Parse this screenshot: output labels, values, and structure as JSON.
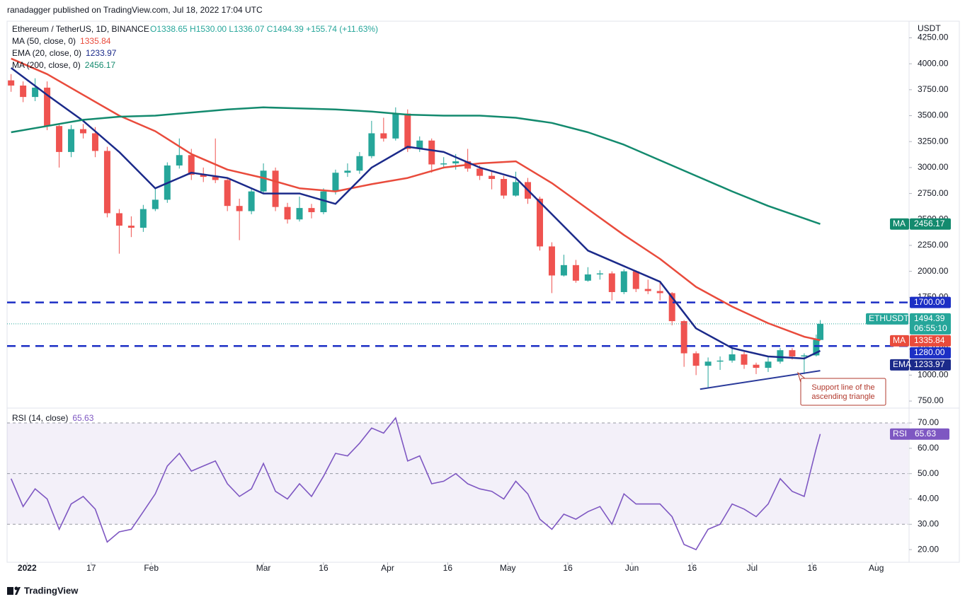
{
  "header": {
    "author_line": "ranadagger published on TradingView.com, Jul 18, 2022 17:04 UTC",
    "symbol": "Ethereum / TetherUS, 1D, BINANCE",
    "ohlc_text": "O1338.65 H1530.00 L1336.07 C1494.39 +155.74 (+11.63%)"
  },
  "footer": {
    "brand": "TradingView"
  },
  "chart_data": [
    {
      "type": "candlestick",
      "currency": "USDT",
      "x": [
        "2021-12-28",
        "2021-12-31",
        "2022-01-03",
        "2022-01-06",
        "2022-01-09",
        "2022-01-12",
        "2022-01-15",
        "2022-01-18",
        "2022-01-21",
        "2022-01-24",
        "2022-01-27",
        "2022-01-30",
        "2022-02-02",
        "2022-02-05",
        "2022-02-08",
        "2022-02-11",
        "2022-02-14",
        "2022-02-17",
        "2022-02-20",
        "2022-02-23",
        "2022-02-26",
        "2022-03-01",
        "2022-03-04",
        "2022-03-07",
        "2022-03-10",
        "2022-03-13",
        "2022-03-16",
        "2022-03-19",
        "2022-03-22",
        "2022-03-25",
        "2022-03-28",
        "2022-03-31",
        "2022-04-03",
        "2022-04-06",
        "2022-04-09",
        "2022-04-12",
        "2022-04-15",
        "2022-04-18",
        "2022-04-21",
        "2022-04-24",
        "2022-04-27",
        "2022-04-30",
        "2022-05-03",
        "2022-05-06",
        "2022-05-09",
        "2022-05-12",
        "2022-05-15",
        "2022-05-18",
        "2022-05-21",
        "2022-05-24",
        "2022-05-27",
        "2022-05-30",
        "2022-06-02",
        "2022-06-05",
        "2022-06-08",
        "2022-06-11",
        "2022-06-14",
        "2022-06-17",
        "2022-06-20",
        "2022-06-23",
        "2022-06-26",
        "2022-06-29",
        "2022-07-02",
        "2022-07-05",
        "2022-07-08",
        "2022-07-11",
        "2022-07-14",
        "2022-07-17",
        "2022-07-18"
      ],
      "ohlc": [
        [
          3840,
          3900,
          3730,
          3790
        ],
        [
          3790,
          3830,
          3630,
          3680
        ],
        [
          3680,
          3860,
          3640,
          3770
        ],
        [
          3770,
          3830,
          3360,
          3400
        ],
        [
          3400,
          3420,
          3000,
          3150
        ],
        [
          3150,
          3410,
          3100,
          3370
        ],
        [
          3370,
          3420,
          3280,
          3330
        ],
        [
          3330,
          3390,
          3100,
          3160
        ],
        [
          3160,
          3200,
          2520,
          2560
        ],
        [
          2560,
          2600,
          2170,
          2440
        ],
        [
          2440,
          2530,
          2330,
          2420
        ],
        [
          2420,
          2640,
          2380,
          2600
        ],
        [
          2600,
          2800,
          2580,
          2690
        ],
        [
          2690,
          3050,
          2660,
          3020
        ],
        [
          3020,
          3280,
          2990,
          3120
        ],
        [
          3120,
          3180,
          2880,
          2930
        ],
        [
          2930,
          3000,
          2860,
          2910
        ],
        [
          2910,
          3280,
          2850,
          2880
        ],
        [
          2880,
          2900,
          2580,
          2630
        ],
        [
          2630,
          2700,
          2300,
          2580
        ],
        [
          2580,
          2800,
          2550,
          2770
        ],
        [
          2770,
          3040,
          2750,
          2970
        ],
        [
          2970,
          3000,
          2580,
          2620
        ],
        [
          2620,
          2660,
          2460,
          2500
        ],
        [
          2500,
          2720,
          2480,
          2610
        ],
        [
          2610,
          2650,
          2510,
          2570
        ],
        [
          2570,
          2800,
          2550,
          2770
        ],
        [
          2770,
          2980,
          2740,
          2950
        ],
        [
          2950,
          3040,
          2910,
          2970
        ],
        [
          2970,
          3150,
          2940,
          3110
        ],
        [
          3110,
          3450,
          3090,
          3330
        ],
        [
          3330,
          3480,
          3250,
          3280
        ],
        [
          3280,
          3580,
          3260,
          3520
        ],
        [
          3520,
          3560,
          3150,
          3180
        ],
        [
          3180,
          3300,
          3150,
          3260
        ],
        [
          3260,
          3280,
          2950,
          3030
        ],
        [
          3030,
          3100,
          2990,
          3040
        ],
        [
          3040,
          3130,
          2980,
          3060
        ],
        [
          3060,
          3180,
          2960,
          2990
        ],
        [
          2990,
          3020,
          2880,
          2920
        ],
        [
          2920,
          2960,
          2790,
          2890
        ],
        [
          2890,
          2920,
          2700,
          2730
        ],
        [
          2730,
          2960,
          2720,
          2860
        ],
        [
          2860,
          2900,
          2650,
          2700
        ],
        [
          2700,
          2720,
          2200,
          2240
        ],
        [
          2240,
          2280,
          1790,
          1960
        ],
        [
          1960,
          2160,
          1950,
          2060
        ],
        [
          2060,
          2110,
          1890,
          1910
        ],
        [
          1910,
          2040,
          1900,
          1970
        ],
        [
          1970,
          2010,
          1920,
          1980
        ],
        [
          1980,
          2000,
          1720,
          1800
        ],
        [
          1800,
          2020,
          1780,
          2000
        ],
        [
          2000,
          2010,
          1800,
          1830
        ],
        [
          1830,
          1920,
          1780,
          1810
        ],
        [
          1810,
          1900,
          1720,
          1790
        ],
        [
          1790,
          1800,
          1480,
          1520
        ],
        [
          1520,
          1530,
          1080,
          1210
        ],
        [
          1210,
          1230,
          1000,
          1090
        ],
        [
          1090,
          1170,
          880,
          1130
        ],
        [
          1130,
          1180,
          1050,
          1140
        ],
        [
          1140,
          1280,
          1120,
          1200
        ],
        [
          1200,
          1230,
          1060,
          1100
        ],
        [
          1100,
          1120,
          1010,
          1070
        ],
        [
          1070,
          1180,
          1030,
          1130
        ],
        [
          1130,
          1260,
          1110,
          1240
        ],
        [
          1240,
          1260,
          1150,
          1180
        ],
        [
          1180,
          1210,
          1010,
          1190
        ],
        [
          1190,
          1390,
          1180,
          1340
        ],
        [
          1338.65,
          1530,
          1336.07,
          1494.39
        ]
      ],
      "colors": {
        "up": "#26a69a",
        "down": "#ef5350"
      },
      "xlim": [
        "2021-12-27",
        "2022-08-09"
      ],
      "ylim": [
        689,
        4410
      ],
      "yticks": [
        {
          "value": 750,
          "label": "750.00"
        },
        {
          "value": 1000,
          "label": "1000.00"
        },
        {
          "value": 1250,
          "label": "1250.00"
        },
        {
          "value": 1500,
          "label": "1500.00"
        },
        {
          "value": 1750,
          "label": "1750.00"
        },
        {
          "value": 2000,
          "label": "2000.00"
        },
        {
          "value": 2250,
          "label": "2250.00"
        },
        {
          "value": 2500,
          "label": "2500.00"
        },
        {
          "value": 2750,
          "label": "2750.00"
        },
        {
          "value": 3000,
          "label": "3000.00"
        },
        {
          "value": 3250,
          "label": "3250.00"
        },
        {
          "value": 3500,
          "label": "3500.00"
        },
        {
          "value": 3750,
          "label": "3750.00"
        },
        {
          "value": 4000,
          "label": "4000.00"
        },
        {
          "value": 4250,
          "label": "4250.00"
        }
      ],
      "symbol_tag": "ETHUSDT",
      "countdown": "06:55:10",
      "series": [
        {
          "name": "MA (50, close, 0)",
          "tag": "MA",
          "color": "#e94b3c",
          "x": [
            "2021-12-28",
            "2022-01-06",
            "2022-01-15",
            "2022-01-24",
            "2022-02-02",
            "2022-02-11",
            "2022-02-20",
            "2022-03-01",
            "2022-03-10",
            "2022-03-19",
            "2022-03-28",
            "2022-04-06",
            "2022-04-15",
            "2022-04-24",
            "2022-05-03",
            "2022-05-12",
            "2022-05-21",
            "2022-05-30",
            "2022-06-08",
            "2022-06-17",
            "2022-06-26",
            "2022-07-05",
            "2022-07-14",
            "2022-07-18"
          ],
          "values": [
            4050,
            3900,
            3700,
            3500,
            3350,
            3130,
            2980,
            2900,
            2800,
            2770,
            2840,
            2900,
            3000,
            3040,
            3060,
            2850,
            2600,
            2350,
            2120,
            1850,
            1660,
            1500,
            1370,
            1335.84
          ]
        },
        {
          "name": "EMA (20, close, 0)",
          "tag": "EMA",
          "color": "#1b2a8a",
          "x": [
            "2021-12-28",
            "2022-01-06",
            "2022-01-15",
            "2022-01-24",
            "2022-02-02",
            "2022-02-11",
            "2022-02-20",
            "2022-03-01",
            "2022-03-10",
            "2022-03-19",
            "2022-03-28",
            "2022-04-06",
            "2022-04-15",
            "2022-04-24",
            "2022-05-03",
            "2022-05-12",
            "2022-05-21",
            "2022-05-30",
            "2022-06-08",
            "2022-06-17",
            "2022-06-26",
            "2022-07-05",
            "2022-07-14",
            "2022-07-18"
          ],
          "values": [
            3960,
            3700,
            3450,
            3150,
            2800,
            2950,
            2900,
            2750,
            2750,
            2650,
            3000,
            3200,
            3150,
            3000,
            2900,
            2550,
            2200,
            2050,
            1900,
            1450,
            1260,
            1180,
            1160,
            1233.97
          ]
        },
        {
          "name": "MA (200, close, 0)",
          "tag": "MA",
          "color": "#138a6e",
          "x": [
            "2021-12-28",
            "2022-01-06",
            "2022-01-15",
            "2022-01-24",
            "2022-02-02",
            "2022-02-11",
            "2022-02-20",
            "2022-03-01",
            "2022-03-10",
            "2022-03-19",
            "2022-03-28",
            "2022-04-06",
            "2022-04-15",
            "2022-04-24",
            "2022-05-03",
            "2022-05-12",
            "2022-05-21",
            "2022-05-30",
            "2022-06-08",
            "2022-06-17",
            "2022-06-26",
            "2022-07-05",
            "2022-07-14",
            "2022-07-18"
          ],
          "values": [
            3340,
            3400,
            3460,
            3490,
            3500,
            3530,
            3560,
            3580,
            3570,
            3560,
            3540,
            3510,
            3500,
            3500,
            3480,
            3430,
            3340,
            3220,
            3070,
            2920,
            2770,
            2630,
            2510,
            2456.17
          ]
        }
      ],
      "levels": {
        "color": "#1c2fc5",
        "items": [
          {
            "value": 1700,
            "label": "1700.00"
          },
          {
            "value": 1280,
            "label": "1280.00"
          }
        ]
      },
      "trendline": {
        "color": "#2a3a9a",
        "x": [
          "2022-06-18",
          "2022-07-18"
        ],
        "values": [
          865,
          1043
        ]
      },
      "annotation": {
        "lines": [
          "Support line of the",
          "ascending triangle"
        ],
        "color": "#b23a2e"
      }
    },
    {
      "type": "line",
      "x": [
        "2021-12-28",
        "2021-12-31",
        "2022-01-03",
        "2022-01-06",
        "2022-01-09",
        "2022-01-12",
        "2022-01-15",
        "2022-01-18",
        "2022-01-21",
        "2022-01-24",
        "2022-01-27",
        "2022-01-30",
        "2022-02-02",
        "2022-02-05",
        "2022-02-08",
        "2022-02-11",
        "2022-02-14",
        "2022-02-17",
        "2022-02-20",
        "2022-02-23",
        "2022-02-26",
        "2022-03-01",
        "2022-03-04",
        "2022-03-07",
        "2022-03-10",
        "2022-03-13",
        "2022-03-16",
        "2022-03-19",
        "2022-03-22",
        "2022-03-25",
        "2022-03-28",
        "2022-03-31",
        "2022-04-03",
        "2022-04-06",
        "2022-04-09",
        "2022-04-12",
        "2022-04-15",
        "2022-04-18",
        "2022-04-21",
        "2022-04-24",
        "2022-04-27",
        "2022-04-30",
        "2022-05-03",
        "2022-05-06",
        "2022-05-09",
        "2022-05-12",
        "2022-05-15",
        "2022-05-18",
        "2022-05-21",
        "2022-05-24",
        "2022-05-27",
        "2022-05-30",
        "2022-06-02",
        "2022-06-05",
        "2022-06-08",
        "2022-06-11",
        "2022-06-14",
        "2022-06-17",
        "2022-06-20",
        "2022-06-23",
        "2022-06-26",
        "2022-06-29",
        "2022-07-02",
        "2022-07-05",
        "2022-07-08",
        "2022-07-11",
        "2022-07-14",
        "2022-07-17",
        "2022-07-18"
      ],
      "series": [
        {
          "name": "RSI (14, close)",
          "tag": "RSI",
          "color": "#7e57c2",
          "values": [
            48,
            37,
            44,
            40,
            28,
            38,
            41,
            36,
            23,
            27,
            28,
            35,
            42,
            53,
            58,
            51,
            53,
            55,
            46,
            41,
            44,
            54,
            43,
            40,
            46,
            41,
            49,
            58,
            57,
            62,
            68,
            66,
            72,
            55,
            57,
            46,
            47,
            50,
            46,
            44,
            43,
            40,
            47,
            42,
            32,
            28,
            34,
            32,
            35,
            37,
            30,
            42,
            38,
            38,
            38,
            33,
            22,
            20,
            28,
            30,
            38,
            36,
            33,
            38,
            48,
            43,
            41,
            60,
            65.63
          ]
        }
      ],
      "xlim": [
        "2021-12-27",
        "2022-08-09"
      ],
      "ylim": [
        15,
        75.6
      ],
      "yticks": [
        {
          "value": 20,
          "label": "20.00"
        },
        {
          "value": 30,
          "label": "30.00"
        },
        {
          "value": 40,
          "label": "40.00"
        },
        {
          "value": 50,
          "label": "50.00"
        },
        {
          "value": 60,
          "label": "60.00"
        },
        {
          "value": 70,
          "label": "70.00"
        }
      ],
      "band": [
        30,
        70
      ],
      "midline": 50,
      "xticks": [
        {
          "value": "2022-01-01",
          "label": "2022"
        },
        {
          "value": "2022-01-17",
          "label": "17"
        },
        {
          "value": "2022-02-01",
          "label": "Feb"
        },
        {
          "value": "2022-03-01",
          "label": "Mar"
        },
        {
          "value": "2022-03-16",
          "label": "16"
        },
        {
          "value": "2022-04-01",
          "label": "Apr"
        },
        {
          "value": "2022-04-16",
          "label": "16"
        },
        {
          "value": "2022-05-01",
          "label": "May"
        },
        {
          "value": "2022-05-16",
          "label": "16"
        },
        {
          "value": "2022-06-01",
          "label": "Jun"
        },
        {
          "value": "2022-06-16",
          "label": "16"
        },
        {
          "value": "2022-07-01",
          "label": "Jul"
        },
        {
          "value": "2022-07-16",
          "label": "16"
        },
        {
          "value": "2022-08-01",
          "label": "Aug"
        }
      ]
    }
  ]
}
